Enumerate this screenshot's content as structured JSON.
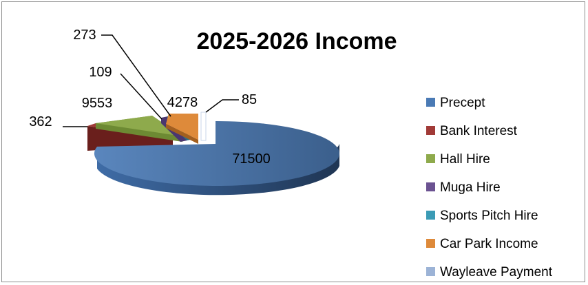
{
  "chart_data": {
    "type": "pie",
    "variant": "3d-exploded",
    "title": "2025-2026 Income",
    "categories": [
      "Precept",
      "Bank Interest",
      "Hall Hire",
      "Muga Hire",
      "Sports Pitch Hire",
      "Car Park Income",
      "Wayleave Payment"
    ],
    "values": [
      71500,
      362,
      9553,
      109,
      273,
      4278,
      85
    ],
    "data_labels": [
      "71500",
      "362",
      "9553",
      "109",
      "273",
      "4278",
      "85"
    ],
    "colors": [
      "#4a7ab5",
      "#a13a37",
      "#8eaa4c",
      "#6b5291",
      "#3b9bb5",
      "#de8a3a",
      "#9cb3d6"
    ],
    "legend_position": "right",
    "grid": false
  }
}
